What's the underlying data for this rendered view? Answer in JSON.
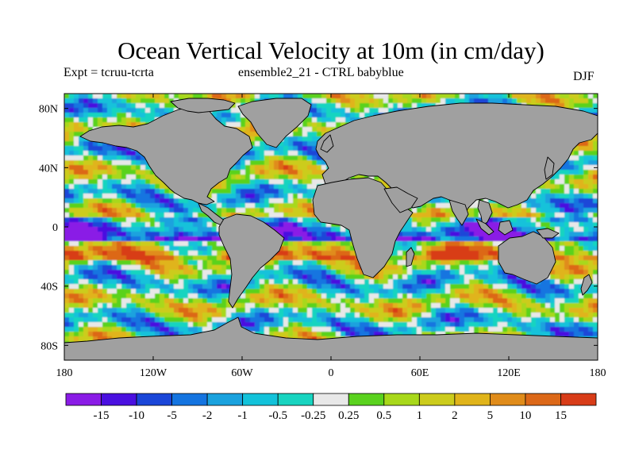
{
  "title": "Ocean Vertical Velocity at 10m (in cm/day)",
  "subtitle_left": "Expt = tcruu-tcrta",
  "subtitle_center": "ensemble2_21 - CTRL babyblue",
  "season": "DJF",
  "map": {
    "projection": "cylindrical-equidistant",
    "lon_range": [
      -180,
      180
    ],
    "lat_range": [
      -90,
      90
    ],
    "land_color": "#a0a0a0",
    "coastline_color": "#000000",
    "lat_ticks": [
      {
        "value": 80,
        "label": "80N"
      },
      {
        "value": 40,
        "label": "40N"
      },
      {
        "value": 0,
        "label": "0"
      },
      {
        "value": -40,
        "label": "40S"
      },
      {
        "value": -80,
        "label": "80S"
      }
    ],
    "lon_ticks": [
      {
        "value": -180,
        "label": "180"
      },
      {
        "value": -120,
        "label": "120W"
      },
      {
        "value": -60,
        "label": "60W"
      },
      {
        "value": 0,
        "label": "0"
      },
      {
        "value": 60,
        "label": "60E"
      },
      {
        "value": 120,
        "label": "120E"
      },
      {
        "value": 180,
        "label": "180"
      }
    ]
  },
  "colorbar": {
    "colors": [
      "#8a1be6",
      "#4a10e0",
      "#1a46d8",
      "#1474e0",
      "#1aa2de",
      "#12c2da",
      "#18d4c0",
      "#e8e8e8",
      "#5ad21e",
      "#a8d81a",
      "#cccc1c",
      "#e0b41a",
      "#e08c1a",
      "#dc6818",
      "#d83c18"
    ],
    "labels": [
      "-15",
      "-10",
      "-5",
      "-2",
      "-1",
      "-0.5",
      "-0.25",
      "0.25",
      "0.5",
      "1",
      "2",
      "5",
      "10",
      "15"
    ]
  }
}
